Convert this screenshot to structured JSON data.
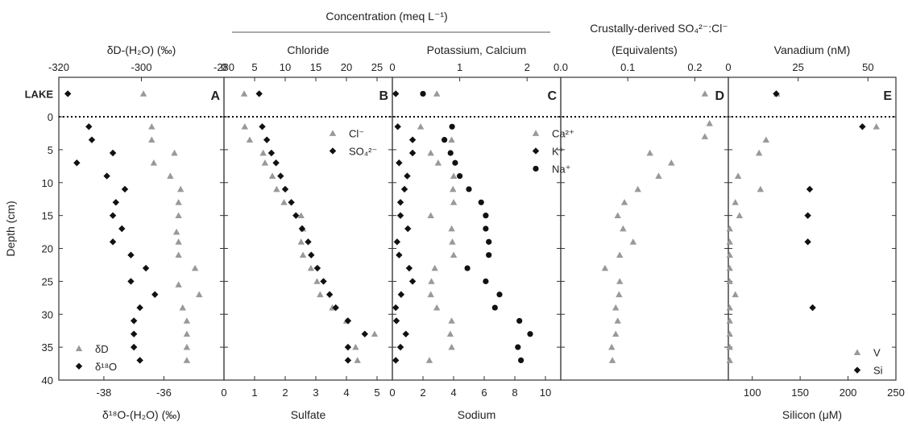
{
  "chart_data": {
    "type": "scatter",
    "depth_axis": {
      "label": "Depth (cm)",
      "lake_label": "LAKE",
      "range": [
        40,
        -6
      ],
      "ticks": [
        0,
        5,
        10,
        15,
        20,
        25,
        30,
        35,
        40
      ],
      "tick_labels": [
        "0",
        "5",
        "10",
        "15",
        "20",
        "25",
        "30",
        "35",
        "40"
      ]
    },
    "top_header": "Concentration (meq L⁻¹)",
    "panels": [
      {
        "id": "A",
        "letter": "A",
        "top_axis": {
          "label": "δD-(H₂O) (‰)",
          "range": [
            -320,
            -280
          ],
          "ticks": [
            -320,
            -300,
            -280
          ],
          "tick_labels": [
            "-320",
            "-300",
            "-280"
          ]
        },
        "bottom_axis": {
          "label": "δ¹⁸O-(H₂O) (‰)",
          "range": [
            -39.5,
            -34.0
          ],
          "ticks": [
            -38,
            -36
          ],
          "tick_labels": [
            "-38",
            "-36"
          ]
        },
        "legend": [
          "δD",
          "δ¹⁸O"
        ],
        "series": [
          {
            "name": "δD",
            "axis": "top",
            "marker": "triangle",
            "points": [
              [
                -299.5,
                -3.5
              ],
              [
                -297.5,
                1.5
              ],
              [
                -297.5,
                3.5
              ],
              [
                -292,
                5.5
              ],
              [
                -297,
                7
              ],
              [
                -293,
                9
              ],
              [
                -290.5,
                11
              ],
              [
                -291,
                13
              ],
              [
                -291,
                15
              ],
              [
                -291.5,
                17.5
              ],
              [
                -291,
                19
              ],
              [
                -291,
                21
              ],
              [
                -287,
                23
              ],
              [
                -291,
                25.5
              ],
              [
                -286,
                27
              ],
              [
                -290,
                29
              ],
              [
                -289,
                31
              ],
              [
                -289,
                33
              ],
              [
                -289,
                35
              ],
              [
                -289,
                37
              ]
            ]
          },
          {
            "name": "δ¹⁸O",
            "axis": "bottom",
            "marker": "diamond",
            "points": [
              [
                -39.2,
                -3.5
              ],
              [
                -38.5,
                1.5
              ],
              [
                -38.4,
                3.5
              ],
              [
                -37.7,
                5.5
              ],
              [
                -38.9,
                7
              ],
              [
                -37.9,
                9
              ],
              [
                -37.3,
                11
              ],
              [
                -37.6,
                13
              ],
              [
                -37.7,
                15
              ],
              [
                -37.4,
                17
              ],
              [
                -37.7,
                19
              ],
              [
                -37.1,
                21
              ],
              [
                -36.6,
                23
              ],
              [
                -37.1,
                25
              ],
              [
                -36.3,
                27
              ],
              [
                -36.8,
                29
              ],
              [
                -37.0,
                31
              ],
              [
                -37.0,
                33
              ],
              [
                -37.0,
                35
              ],
              [
                -36.8,
                37
              ]
            ]
          }
        ]
      },
      {
        "id": "B",
        "letter": "B",
        "top_axis": {
          "label": "Chloride",
          "range": [
            0,
            27.5
          ],
          "ticks": [
            0,
            5,
            10,
            15,
            20,
            25
          ],
          "tick_labels": [
            "0",
            "5",
            "10",
            "15",
            "20",
            "25"
          ]
        },
        "bottom_axis": {
          "label": "Sulfate",
          "range": [
            0,
            5.5
          ],
          "ticks": [
            0,
            1,
            2,
            3,
            4,
            5
          ],
          "tick_labels": [
            "0",
            "1",
            "2",
            "3",
            "4",
            "5"
          ]
        },
        "legend": [
          "Cl⁻",
          "SO₄²⁻"
        ],
        "series": [
          {
            "name": "Cl⁻",
            "axis": "top",
            "marker": "triangle",
            "points": [
              [
                3.3,
                -3.5
              ],
              [
                3.4,
                1.5
              ],
              [
                4.2,
                3.5
              ],
              [
                6.4,
                5.5
              ],
              [
                6.7,
                7
              ],
              [
                7.9,
                9
              ],
              [
                8.6,
                11
              ],
              [
                9.8,
                13
              ],
              [
                12.6,
                15
              ],
              [
                12.9,
                17
              ],
              [
                12.6,
                19
              ],
              [
                12.9,
                21
              ],
              [
                14.2,
                23
              ],
              [
                15.2,
                25
              ],
              [
                15.7,
                27
              ],
              [
                17.7,
                29
              ],
              [
                20.0,
                31
              ],
              [
                24.6,
                33
              ],
              [
                21.5,
                35
              ],
              [
                21.8,
                37
              ]
            ]
          },
          {
            "name": "SO₄²⁻",
            "axis": "bottom",
            "marker": "diamond",
            "points": [
              [
                1.15,
                -3.5
              ],
              [
                1.25,
                1.5
              ],
              [
                1.4,
                3.5
              ],
              [
                1.55,
                5.5
              ],
              [
                1.7,
                7
              ],
              [
                1.85,
                9
              ],
              [
                2.0,
                11
              ],
              [
                2.2,
                13
              ],
              [
                2.35,
                15
              ],
              [
                2.55,
                17
              ],
              [
                2.75,
                19
              ],
              [
                2.85,
                21
              ],
              [
                3.05,
                23
              ],
              [
                3.25,
                25
              ],
              [
                3.45,
                27
              ],
              [
                3.65,
                29
              ],
              [
                4.05,
                31
              ],
              [
                4.6,
                33
              ],
              [
                4.05,
                35
              ],
              [
                4.05,
                37
              ]
            ]
          }
        ]
      },
      {
        "id": "C",
        "letter": "C",
        "top_axis": {
          "label": "Potassium, Calcium",
          "range": [
            0,
            2.5
          ],
          "ticks": [
            0,
            1,
            2
          ],
          "tick_labels": [
            "0",
            "1",
            "2"
          ]
        },
        "bottom_axis": {
          "label": "Sodium",
          "range": [
            0,
            11
          ],
          "ticks": [
            0,
            2,
            4,
            6,
            8,
            10
          ],
          "tick_labels": [
            "0",
            "2",
            "4",
            "6",
            "8",
            "10"
          ]
        },
        "legend": [
          "Ca²⁺",
          "K⁺",
          "Na⁺"
        ],
        "series": [
          {
            "name": "Ca²⁺",
            "axis": "top",
            "marker": "triangle",
            "points": [
              [
                0.66,
                -3.5
              ],
              [
                0.42,
                1.5
              ],
              [
                0.88,
                3.5
              ],
              [
                0.57,
                5.5
              ],
              [
                0.68,
                7
              ],
              [
                0.91,
                9
              ],
              [
                0.9,
                11
              ],
              [
                0.91,
                13
              ],
              [
                0.57,
                15
              ],
              [
                0.88,
                17
              ],
              [
                0.89,
                19
              ],
              [
                0.91,
                21
              ],
              [
                0.63,
                23
              ],
              [
                0.58,
                25
              ],
              [
                0.57,
                27
              ],
              [
                0.66,
                29
              ],
              [
                0.88,
                31
              ],
              [
                0.86,
                33
              ],
              [
                0.88,
                35
              ],
              [
                0.55,
                37
              ]
            ]
          },
          {
            "name": "K⁺",
            "axis": "top",
            "marker": "diamond",
            "points": [
              [
                0.05,
                -3.5
              ],
              [
                0.08,
                1.5
              ],
              [
                0.3,
                3.5
              ],
              [
                0.3,
                5.5
              ],
              [
                0.1,
                7
              ],
              [
                0.22,
                9
              ],
              [
                0.18,
                11
              ],
              [
                0.12,
                13
              ],
              [
                0.12,
                15
              ],
              [
                0.23,
                17
              ],
              [
                0.07,
                19
              ],
              [
                0.1,
                21
              ],
              [
                0.25,
                23
              ],
              [
                0.3,
                25
              ],
              [
                0.13,
                27
              ],
              [
                0.05,
                29
              ],
              [
                0.06,
                31
              ],
              [
                0.2,
                33
              ],
              [
                0.12,
                35
              ],
              [
                0.05,
                37
              ]
            ]
          },
          {
            "name": "Na⁺",
            "axis": "bottom",
            "marker": "circle",
            "points": [
              [
                2.0,
                -3.5
              ],
              [
                3.9,
                1.5
              ],
              [
                3.4,
                3.5
              ],
              [
                3.8,
                5.5
              ],
              [
                4.1,
                7
              ],
              [
                4.4,
                9
              ],
              [
                5.0,
                11
              ],
              [
                5.8,
                13
              ],
              [
                6.1,
                15
              ],
              [
                6.1,
                17
              ],
              [
                6.3,
                19
              ],
              [
                6.3,
                21
              ],
              [
                4.9,
                23
              ],
              [
                6.1,
                25
              ],
              [
                7.0,
                27
              ],
              [
                6.7,
                29
              ],
              [
                8.3,
                31
              ],
              [
                9.0,
                33
              ],
              [
                8.2,
                35
              ],
              [
                8.4,
                37
              ]
            ]
          }
        ]
      },
      {
        "id": "D",
        "letter": "D",
        "top_header": "Crustally-derived SO₄²⁻:Cl⁻",
        "top_axis": {
          "label": "(Equivalents)",
          "range": [
            0,
            0.25
          ],
          "ticks": [
            0,
            0.1,
            0.2
          ],
          "tick_labels": [
            "0.0",
            "0.1",
            "0.2"
          ]
        },
        "bottom_axis": null,
        "legend": [],
        "series": [
          {
            "name": "",
            "axis": "top",
            "marker": "triangle",
            "points": [
              [
                0.215,
                -3.5
              ],
              [
                0.222,
                1.0
              ],
              [
                0.215,
                3.0
              ],
              [
                0.133,
                5.5
              ],
              [
                0.165,
                7
              ],
              [
                0.146,
                9
              ],
              [
                0.115,
                11
              ],
              [
                0.095,
                13
              ],
              [
                0.085,
                15
              ],
              [
                0.093,
                17
              ],
              [
                0.108,
                19
              ],
              [
                0.088,
                21
              ],
              [
                0.066,
                23
              ],
              [
                0.088,
                25
              ],
              [
                0.087,
                27
              ],
              [
                0.082,
                29
              ],
              [
                0.085,
                31
              ],
              [
                0.082,
                33
              ],
              [
                0.076,
                35
              ],
              [
                0.077,
                37
              ]
            ]
          }
        ]
      },
      {
        "id": "E",
        "letter": "E",
        "top_axis": {
          "label": "Vanadium (nM)",
          "range": [
            0,
            60
          ],
          "ticks": [
            0,
            25,
            50
          ],
          "tick_labels": [
            "0",
            "25",
            "50"
          ]
        },
        "bottom_axis": {
          "label": "Silicon (μM)",
          "range": [
            75,
            250
          ],
          "ticks": [
            100,
            150,
            200,
            250
          ],
          "tick_labels": [
            "100",
            "150",
            "200",
            "250"
          ]
        },
        "legend": [
          "V",
          "Si"
        ],
        "series": [
          {
            "name": "V",
            "axis": "top",
            "marker": "triangle",
            "points": [
              [
                17.4,
                -3.5
              ],
              [
                53,
                1.5
              ],
              [
                13.5,
                3.5
              ],
              [
                11,
                5.5
              ],
              [
                3.5,
                9
              ],
              [
                11.5,
                11
              ],
              [
                2.5,
                13
              ],
              [
                4.0,
                15
              ],
              [
                0.5,
                17
              ],
              [
                0.5,
                19
              ],
              [
                0.5,
                21
              ],
              [
                0.5,
                23
              ],
              [
                0.5,
                25
              ],
              [
                2.5,
                27
              ],
              [
                0.5,
                29
              ],
              [
                0.5,
                31
              ],
              [
                0.5,
                33
              ],
              [
                0.5,
                35
              ],
              [
                0.5,
                37
              ]
            ]
          },
          {
            "name": "Si",
            "axis": "bottom",
            "marker": "diamond",
            "points": [
              [
                125,
                -3.5
              ],
              [
                215,
                1.5
              ],
              [
                160,
                11
              ],
              [
                158,
                15
              ],
              [
                158,
                19
              ],
              [
                163,
                29
              ]
            ]
          }
        ]
      }
    ]
  }
}
